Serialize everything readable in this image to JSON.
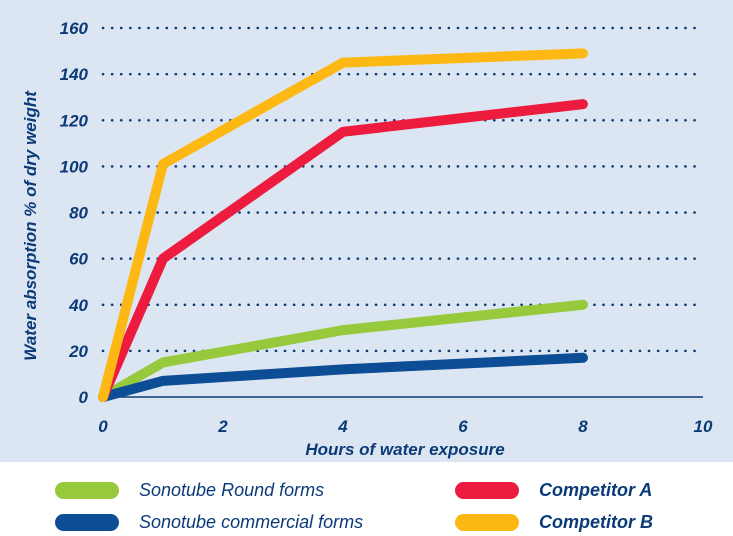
{
  "chart_data": {
    "type": "line",
    "title": "",
    "xlabel": "Hours of water exposure",
    "ylabel": "Water absorption % of dry weight",
    "xlim": [
      0,
      10
    ],
    "ylim": [
      0,
      160
    ],
    "xticks": [
      "0",
      "2",
      "4",
      "6",
      "8",
      "10"
    ],
    "yticks": [
      "0",
      "20",
      "40",
      "60",
      "80",
      "100",
      "120",
      "140",
      "160"
    ],
    "grid": "dotted horizontal",
    "legend_position": "bottom",
    "series": [
      {
        "name": "Sonotube Round forms",
        "color": "#97c93d",
        "x": [
          0,
          1,
          4,
          8
        ],
        "y": [
          0,
          15,
          29,
          40
        ]
      },
      {
        "name": "Sonotube commercial forms",
        "color": "#0d4d96",
        "x": [
          0,
          1,
          4,
          8
        ],
        "y": [
          0,
          7,
          12,
          17
        ]
      },
      {
        "name": "Competitor A",
        "color": "#ed1c3e",
        "x": [
          0,
          1,
          4,
          8
        ],
        "y": [
          0,
          60,
          115,
          127
        ]
      },
      {
        "name": "Competitor B",
        "color": "#fdb813",
        "x": [
          0,
          1,
          4,
          8
        ],
        "y": [
          0,
          101,
          145,
          149
        ]
      }
    ]
  }
}
